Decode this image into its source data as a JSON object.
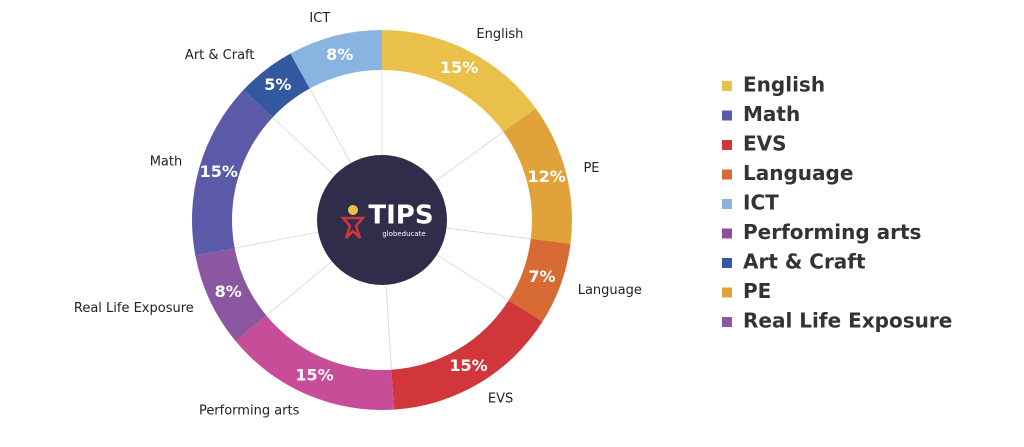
{
  "chart_data": {
    "type": "pie",
    "donut": true,
    "categories": [
      "English",
      "PE",
      "Language",
      "EVS",
      "Performing arts",
      "Real Life Exposure",
      "Math",
      "Art & Craft",
      "ICT"
    ],
    "values": [
      15,
      12,
      7,
      15,
      15,
      8,
      15,
      5,
      8
    ],
    "value_labels": [
      "15%",
      "12%",
      "7%",
      "15%",
      "15%",
      "8%",
      "15%",
      "5%",
      "8%"
    ],
    "colors": [
      "#e8c04a",
      "#e2a23a",
      "#d86a35",
      "#d0363a",
      "#c84d98",
      "#8a57a0",
      "#5b5aa8",
      "#3458a0",
      "#8ab4e0"
    ],
    "legend": [
      {
        "name": "English",
        "color": "#e8c04a"
      },
      {
        "name": "Math",
        "color": "#5b5aa8"
      },
      {
        "name": "EVS",
        "color": "#d0363a"
      },
      {
        "name": "Language",
        "color": "#d86a35"
      },
      {
        "name": "ICT",
        "color": "#8ab4e0"
      },
      {
        "name": "Performing arts",
        "color": "#8e4fa0"
      },
      {
        "name": "Art & Craft",
        "color": "#3458a0"
      },
      {
        "name": "PE",
        "color": "#e2a23a"
      },
      {
        "name": "Real Life Exposure",
        "color": "#8a57a0"
      }
    ],
    "center_logo": {
      "title": "TIPS",
      "subtitle": "globeducate"
    }
  }
}
